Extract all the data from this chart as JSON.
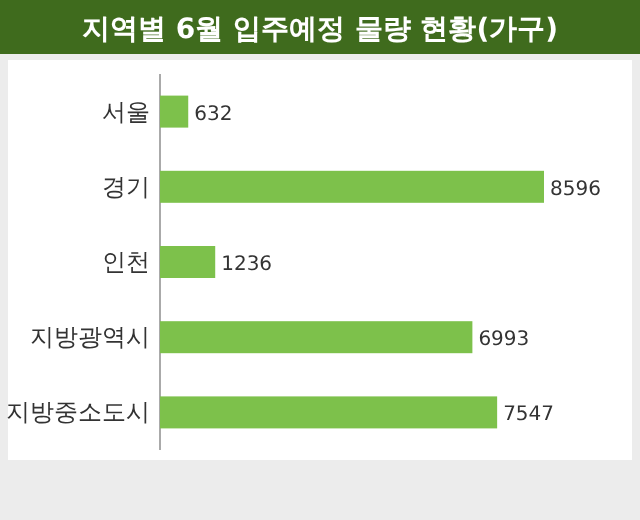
{
  "chart_data": {
    "type": "bar",
    "orientation": "horizontal",
    "title": "지역별 6월 입주예정 물량 현황(가구)",
    "categories": [
      "서울",
      "경기",
      "인천",
      "지방광역시",
      "지방중소도시"
    ],
    "values": [
      632,
      8596,
      1236,
      6993,
      7547
    ],
    "color": "#7dc14b",
    "data_labels": true
  }
}
